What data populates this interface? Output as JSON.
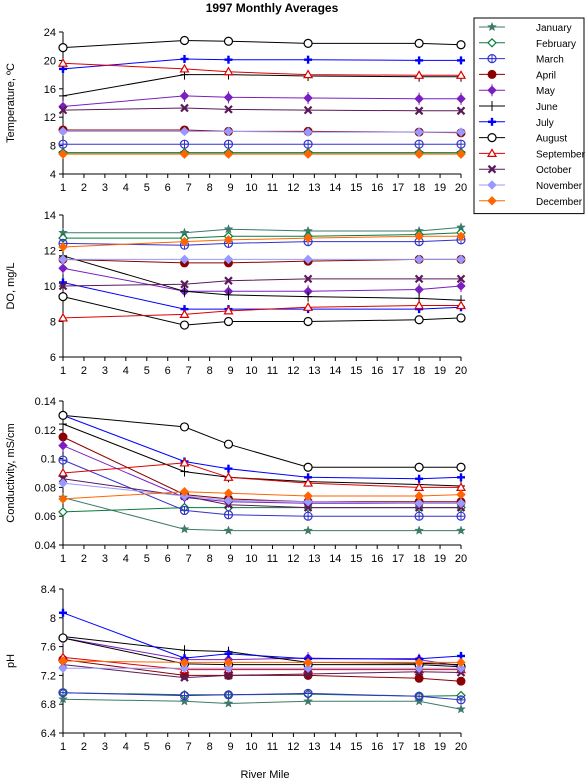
{
  "chart_data": {
    "type": "line",
    "title": "1997 Monthly Averages",
    "xlabel": "River Mile",
    "x_ticks": [
      1,
      2,
      3,
      4,
      5,
      6,
      7,
      8,
      9,
      10,
      11,
      12,
      13,
      14,
      15,
      16,
      17,
      18,
      19,
      20
    ],
    "x": [
      1,
      6.8,
      8.9,
      12.7,
      18,
      20
    ],
    "xlim": [
      1,
      20
    ],
    "grid": false,
    "legend_position": "top-right",
    "months": [
      {
        "name": "January",
        "color": "#3d7a6a",
        "marker": "star"
      },
      {
        "name": "February",
        "color": "#0b7a3a",
        "marker": "diamond-open"
      },
      {
        "name": "March",
        "color": "#3333cc",
        "marker": "circle-plus"
      },
      {
        "name": "April",
        "color": "#8b0000",
        "marker": "circle-filled"
      },
      {
        "name": "May",
        "color": "#7a1fc2",
        "marker": "diamond-plus"
      },
      {
        "name": "June",
        "color": "#000000",
        "marker": "plus-thin"
      },
      {
        "name": "July",
        "color": "#0000ff",
        "marker": "plus-bold"
      },
      {
        "name": "August",
        "color": "#000000",
        "marker": "circle-open"
      },
      {
        "name": "September",
        "color": "#dd0000",
        "marker": "triangle-open"
      },
      {
        "name": "October",
        "color": "#5a1a5a",
        "marker": "x-bold"
      },
      {
        "name": "November",
        "color": "#9999ff",
        "marker": "diamond-filled"
      },
      {
        "name": "December",
        "color": "#ff6600",
        "marker": "diamond-filled"
      }
    ],
    "panels": [
      {
        "ylabel": "Temperature, ºC",
        "ylim": [
          4,
          24
        ],
        "yticks": [
          4,
          8,
          12,
          16,
          20,
          24
        ],
        "ytick_labels": [
          "4",
          "8",
          "12",
          "16",
          "20",
          "24"
        ],
        "series": [
          {
            "name": "January",
            "values": [
              7.0,
              7.0,
              7.0,
              7.0,
              7.0,
              7.0
            ]
          },
          {
            "name": "February",
            "values": [
              7.0,
              7.0,
              7.0,
              7.0,
              7.0,
              7.0
            ]
          },
          {
            "name": "March",
            "values": [
              8.2,
              8.2,
              8.2,
              8.2,
              8.2,
              8.2
            ]
          },
          {
            "name": "April",
            "values": [
              10.2,
              10.2,
              10.0,
              10.0,
              9.9,
              9.8
            ]
          },
          {
            "name": "May",
            "values": [
              13.5,
              15.0,
              14.8,
              14.7,
              14.6,
              14.6
            ]
          },
          {
            "name": "June",
            "values": [
              15.0,
              18.0,
              18.0,
              17.8,
              17.7,
              17.7
            ]
          },
          {
            "name": "July",
            "values": [
              18.8,
              20.2,
              20.1,
              20.1,
              20.0,
              20.0
            ]
          },
          {
            "name": "August",
            "values": [
              21.8,
              22.8,
              22.7,
              22.4,
              22.4,
              22.2
            ]
          },
          {
            "name": "September",
            "values": [
              19.6,
              18.8,
              18.4,
              18.0,
              17.9,
              17.9
            ]
          },
          {
            "name": "October",
            "values": [
              13.0,
              13.3,
              13.1,
              13.0,
              12.9,
              12.9
            ]
          },
          {
            "name": "November",
            "values": [
              10.0,
              10.0,
              10.0,
              9.9,
              9.9,
              9.9
            ]
          },
          {
            "name": "December",
            "values": [
              6.8,
              6.8,
              6.8,
              6.8,
              6.8,
              6.8
            ]
          }
        ]
      },
      {
        "ylabel": "DO, mg/L",
        "ylim": [
          6,
          14
        ],
        "yticks": [
          6,
          8,
          10,
          12,
          14
        ],
        "ytick_labels": [
          "6",
          "8",
          "10",
          "12",
          "14"
        ],
        "series": [
          {
            "name": "January",
            "values": [
              13.0,
              13.0,
              13.2,
              13.1,
              13.1,
              13.3
            ]
          },
          {
            "name": "February",
            "values": [
              12.7,
              12.7,
              12.8,
              12.8,
              12.9,
              13.0
            ]
          },
          {
            "name": "March",
            "values": [
              12.4,
              12.3,
              12.4,
              12.5,
              12.5,
              12.6
            ]
          },
          {
            "name": "April",
            "values": [
              11.5,
              11.3,
              11.3,
              11.4,
              11.5,
              11.5
            ]
          },
          {
            "name": "May",
            "values": [
              11.0,
              9.7,
              9.7,
              9.7,
              9.8,
              10.0
            ]
          },
          {
            "name": "June",
            "values": [
              11.7,
              9.7,
              9.5,
              9.4,
              9.3,
              9.2
            ]
          },
          {
            "name": "July",
            "values": [
              10.2,
              8.7,
              8.7,
              8.7,
              8.7,
              8.8
            ]
          },
          {
            "name": "August",
            "values": [
              9.4,
              7.8,
              8.0,
              8.0,
              8.1,
              8.2
            ]
          },
          {
            "name": "September",
            "values": [
              8.2,
              8.4,
              8.6,
              8.8,
              8.9,
              8.9
            ]
          },
          {
            "name": "October",
            "values": [
              10.0,
              10.1,
              10.3,
              10.4,
              10.4,
              10.4
            ]
          },
          {
            "name": "November",
            "values": [
              11.5,
              11.5,
              11.5,
              11.5,
              11.5,
              11.5
            ]
          },
          {
            "name": "December",
            "values": [
              12.2,
              12.5,
              12.6,
              12.7,
              12.8,
              12.8
            ]
          }
        ]
      },
      {
        "ylabel": "Conductivity, mS/cm",
        "ylim": [
          0.04,
          0.14
        ],
        "yticks": [
          0.04,
          0.06,
          0.08,
          0.1,
          0.12,
          0.14
        ],
        "ytick_labels": [
          "0.04",
          "0.06",
          "0.08",
          "0.1",
          "0.12",
          "0.14"
        ],
        "series": [
          {
            "name": "January",
            "values": [
              0.073,
              0.051,
              0.05,
              0.05,
              0.05,
              0.05
            ]
          },
          {
            "name": "February",
            "values": [
              0.063,
              0.066,
              0.066,
              0.066,
              0.066,
              0.066
            ]
          },
          {
            "name": "March",
            "values": [
              0.099,
              0.064,
              0.061,
              0.06,
              0.06,
              0.06
            ]
          },
          {
            "name": "April",
            "values": [
              0.115,
              0.075,
              0.072,
              0.07,
              0.07,
              0.07
            ]
          },
          {
            "name": "May",
            "values": [
              0.109,
              0.073,
              0.07,
              0.069,
              0.069,
              0.069
            ]
          },
          {
            "name": "June",
            "values": [
              0.124,
              0.091,
              0.087,
              0.084,
              0.082,
              0.081
            ]
          },
          {
            "name": "July",
            "values": [
              0.13,
              0.098,
              0.093,
              0.087,
              0.086,
              0.087
            ]
          },
          {
            "name": "August",
            "values": [
              0.13,
              0.122,
              0.11,
              0.094,
              0.094,
              0.094
            ]
          },
          {
            "name": "September",
            "values": [
              0.09,
              0.097,
              0.087,
              0.083,
              0.08,
              0.08
            ]
          },
          {
            "name": "October",
            "values": [
              0.086,
              0.074,
              0.068,
              0.066,
              0.066,
              0.066
            ]
          },
          {
            "name": "November",
            "values": [
              0.083,
              0.074,
              0.071,
              0.07,
              0.069,
              0.069
            ]
          },
          {
            "name": "December",
            "values": [
              0.072,
              0.077,
              0.076,
              0.074,
              0.074,
              0.075
            ]
          }
        ]
      },
      {
        "ylabel": "pH",
        "ylim": [
          6.4,
          8.4
        ],
        "yticks": [
          6.4,
          6.8,
          7.2,
          7.6,
          8,
          8.4
        ],
        "ytick_labels": [
          "6.4",
          "6.8",
          "7.2",
          "7.6",
          "8",
          "8.4"
        ],
        "series": [
          {
            "name": "January",
            "values": [
              6.87,
              6.84,
              6.81,
              6.84,
              6.84,
              6.73
            ]
          },
          {
            "name": "February",
            "values": [
              6.96,
              6.93,
              6.93,
              6.94,
              6.91,
              6.92
            ]
          },
          {
            "name": "March",
            "values": [
              6.96,
              6.92,
              6.93,
              6.95,
              6.91,
              6.86
            ]
          },
          {
            "name": "April",
            "values": [
              7.42,
              7.2,
              7.2,
              7.2,
              7.16,
              7.12
            ]
          },
          {
            "name": "May",
            "values": [
              7.72,
              7.42,
              7.42,
              7.44,
              7.42,
              7.33
            ]
          },
          {
            "name": "June",
            "values": [
              7.74,
              7.55,
              7.53,
              7.38,
              7.37,
              7.35
            ]
          },
          {
            "name": "July",
            "values": [
              8.07,
              7.44,
              7.5,
              7.43,
              7.43,
              7.47
            ]
          },
          {
            "name": "August",
            "values": [
              7.72,
              7.36,
              7.35,
              7.35,
              7.35,
              7.32
            ]
          },
          {
            "name": "September",
            "values": [
              7.45,
              7.28,
              7.28,
              7.28,
              7.28,
              7.28
            ]
          },
          {
            "name": "October",
            "values": [
              7.35,
              7.17,
              7.2,
              7.22,
              7.25,
              7.24
            ]
          },
          {
            "name": "November",
            "values": [
              7.3,
              7.3,
              7.3,
              7.3,
              7.3,
              7.3
            ]
          },
          {
            "name": "December",
            "values": [
              7.4,
              7.38,
              7.38,
              7.38,
              7.38,
              7.38
            ]
          }
        ]
      }
    ]
  }
}
